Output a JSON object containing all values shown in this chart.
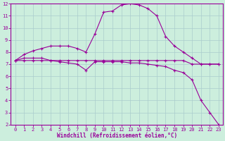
{
  "xlabel": "Windchill (Refroidissement éolien,°C)",
  "bg_color": "#cceedd",
  "line_color": "#990099",
  "grid_color": "#aacccc",
  "xlim": [
    -0.5,
    23.5
  ],
  "ylim": [
    2,
    12
  ],
  "yticks": [
    2,
    3,
    4,
    5,
    6,
    7,
    8,
    9,
    10,
    11,
    12
  ],
  "xticks": [
    0,
    1,
    2,
    3,
    4,
    5,
    6,
    7,
    8,
    9,
    10,
    11,
    12,
    13,
    14,
    15,
    16,
    17,
    18,
    19,
    20,
    21,
    22,
    23
  ],
  "series": [
    {
      "x": [
        0,
        1,
        2,
        3,
        4,
        5,
        6,
        7,
        8,
        9,
        10,
        11,
        12,
        13,
        14,
        15,
        16,
        17,
        18,
        19,
        20,
        21,
        22,
        23
      ],
      "y": [
        7.3,
        7.8,
        8.1,
        8.3,
        8.5,
        8.5,
        8.5,
        8.3,
        8.0,
        9.5,
        11.3,
        11.4,
        11.9,
        12.0,
        11.9,
        11.6,
        11.0,
        9.3,
        8.5,
        8.0,
        7.5,
        7.0,
        7.0,
        7.0
      ]
    },
    {
      "x": [
        0,
        1,
        2,
        3,
        4,
        5,
        6,
        7,
        8,
        9,
        10,
        11,
        12,
        13,
        14,
        15,
        16,
        17,
        18,
        19,
        20,
        21,
        22,
        23
      ],
      "y": [
        7.3,
        7.3,
        7.3,
        7.3,
        7.3,
        7.3,
        7.3,
        7.3,
        7.3,
        7.3,
        7.3,
        7.3,
        7.3,
        7.3,
        7.3,
        7.3,
        7.3,
        7.3,
        7.3,
        7.3,
        7.0,
        7.0,
        7.0,
        7.0
      ]
    },
    {
      "x": [
        0,
        1,
        2,
        3,
        4,
        5,
        6,
        7,
        8,
        9,
        10,
        11,
        12,
        13,
        14,
        15,
        16,
        17,
        18,
        19,
        20,
        21,
        22,
        23
      ],
      "y": [
        7.3,
        7.5,
        7.5,
        7.5,
        7.3,
        7.2,
        7.1,
        7.0,
        6.5,
        7.2,
        7.2,
        7.2,
        7.2,
        7.1,
        7.1,
        7.0,
        6.9,
        6.8,
        6.5,
        6.3,
        5.7,
        4.0,
        3.0,
        2.0
      ]
    }
  ]
}
